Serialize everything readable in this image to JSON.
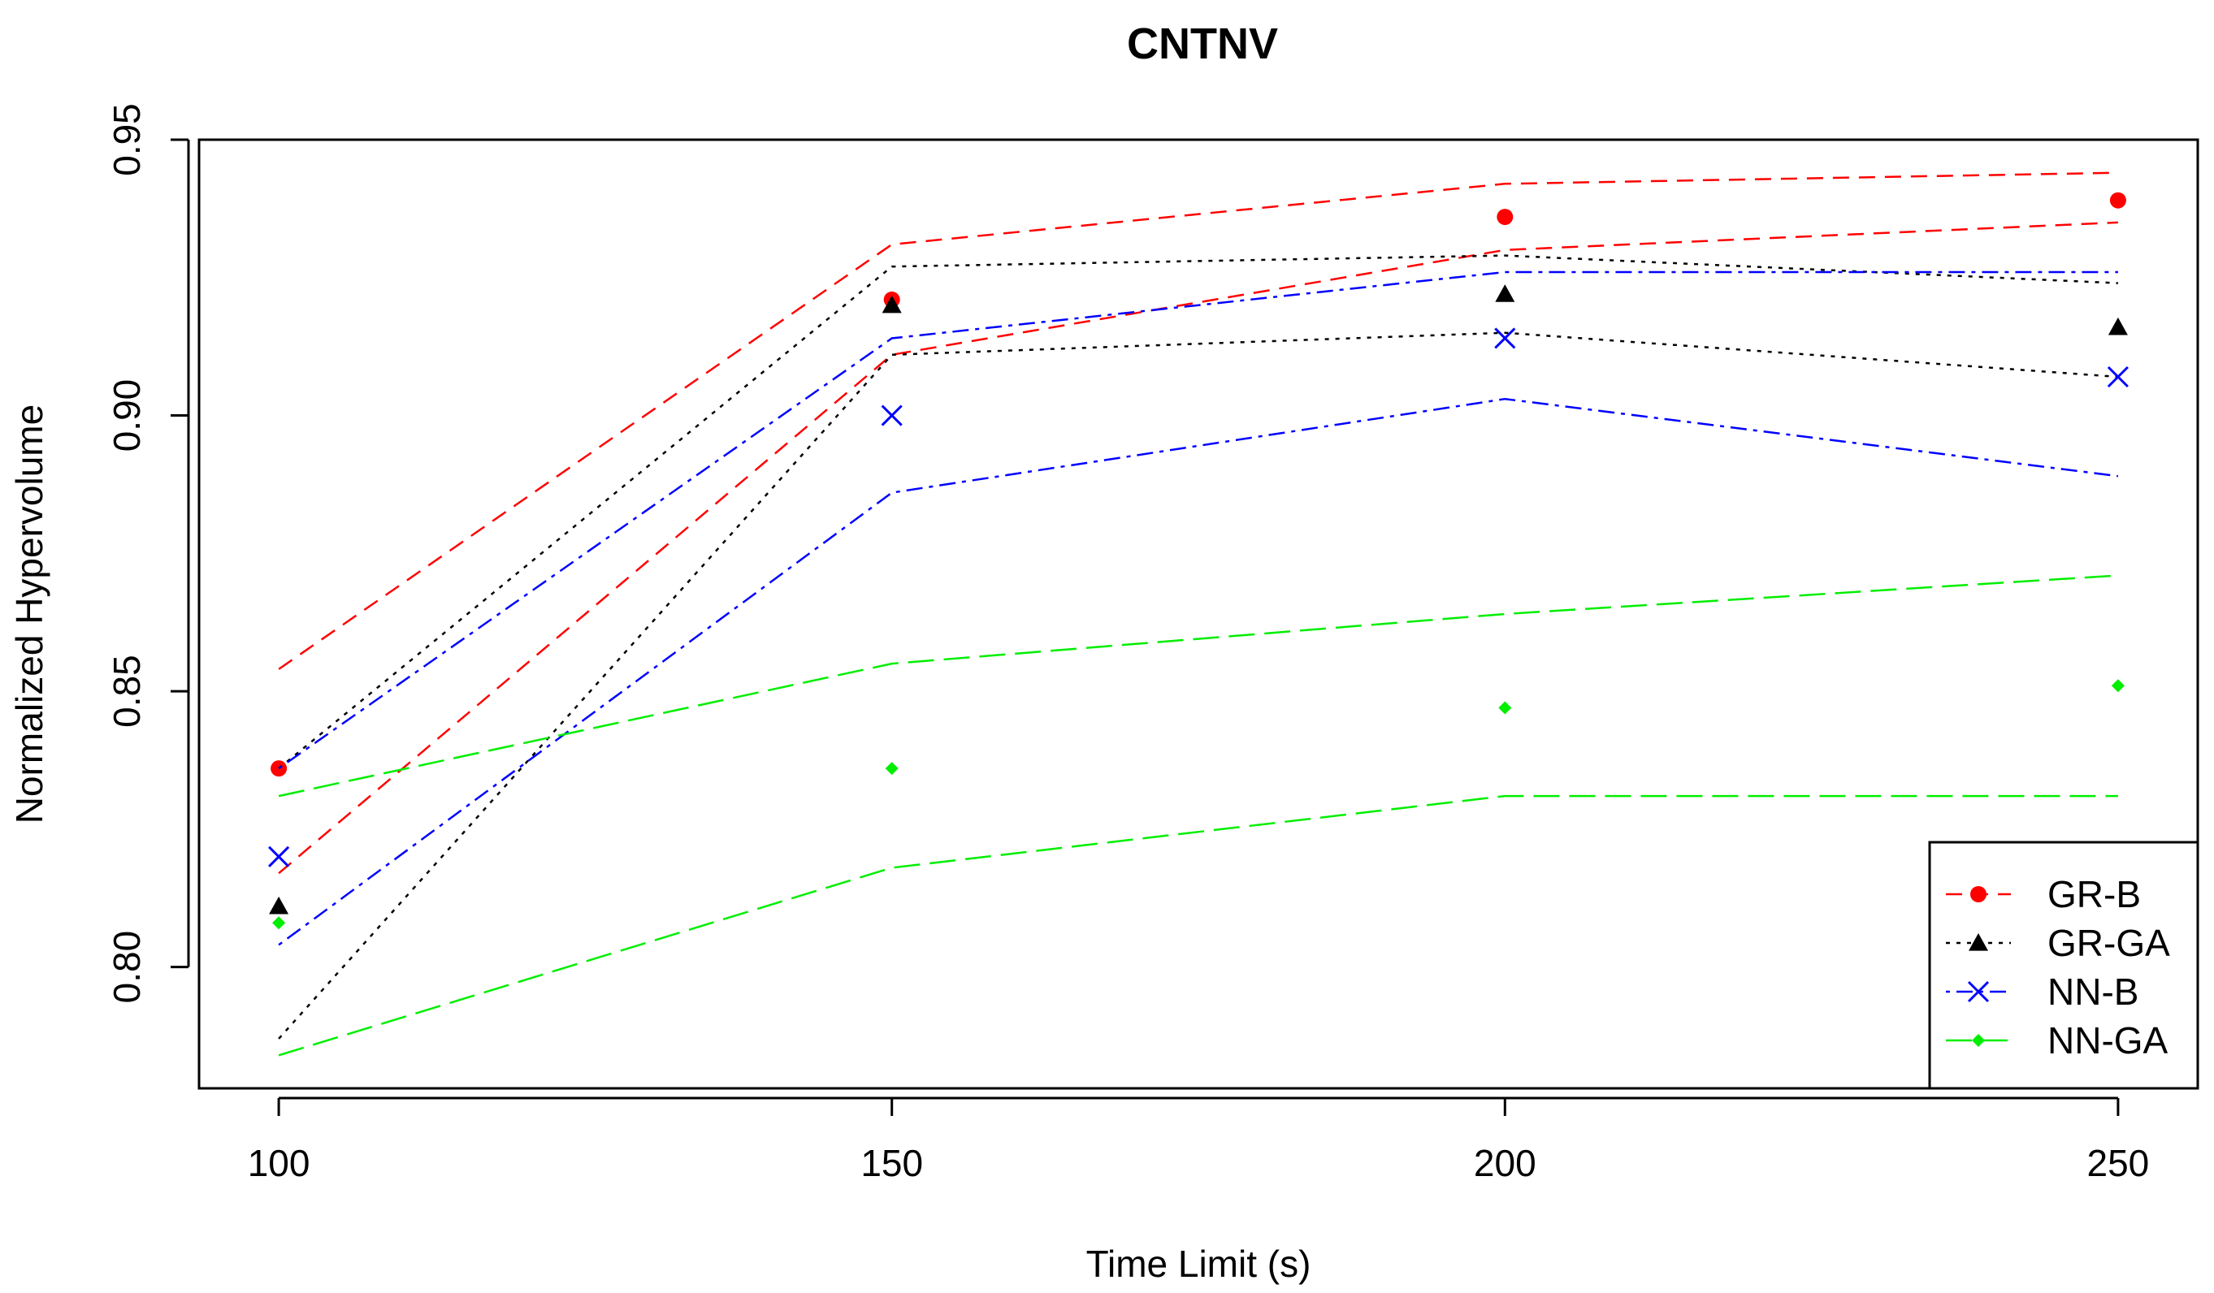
{
  "chart_data": {
    "type": "line",
    "title": "CNTNV",
    "xlabel": "Time Limit (s)",
    "ylabel": "Normalized Hypervolume",
    "x": [
      100,
      150,
      200,
      250
    ],
    "x_tick_labels": [
      "100",
      "150",
      "200",
      "250"
    ],
    "y_ticks": [
      0.8,
      0.85,
      0.9,
      0.95
    ],
    "y_tick_labels": [
      "0.80",
      "0.85",
      "0.90",
      "0.95"
    ],
    "xlim": [
      93.5,
      256.5
    ],
    "ylim": [
      0.778,
      0.95
    ],
    "legend_position": "bottom-right",
    "series": [
      {
        "name": "GR-B",
        "color": "#ff0000",
        "marker": "circle",
        "dash": "dashed",
        "values": [
          0.836,
          0.921,
          0.936,
          0.939
        ],
        "upper": [
          0.854,
          0.931,
          0.942,
          0.944
        ],
        "lower": [
          0.817,
          0.911,
          0.93,
          0.935
        ]
      },
      {
        "name": "GR-GA",
        "color": "#000000",
        "marker": "triangle",
        "dash": "dotted",
        "values": [
          0.811,
          0.92,
          0.922,
          0.916
        ],
        "upper": [
          0.836,
          0.927,
          0.929,
          0.924
        ],
        "lower": [
          0.787,
          0.911,
          0.915,
          0.907
        ]
      },
      {
        "name": "NN-B",
        "color": "#0000ff",
        "marker": "cross",
        "dash": "dotdash",
        "values": [
          0.82,
          0.9,
          0.914,
          0.907
        ],
        "upper": [
          0.836,
          0.914,
          0.926,
          0.926
        ],
        "lower": [
          0.804,
          0.886,
          0.903,
          0.889
        ]
      },
      {
        "name": "NN-GA",
        "color": "#00ee00",
        "marker": "diamond",
        "dash": "longdash",
        "values": [
          0.808,
          0.836,
          0.847,
          0.851
        ],
        "upper": [
          0.831,
          0.855,
          0.864,
          0.871
        ],
        "lower": [
          0.784,
          0.818,
          0.831,
          0.831
        ]
      }
    ]
  }
}
